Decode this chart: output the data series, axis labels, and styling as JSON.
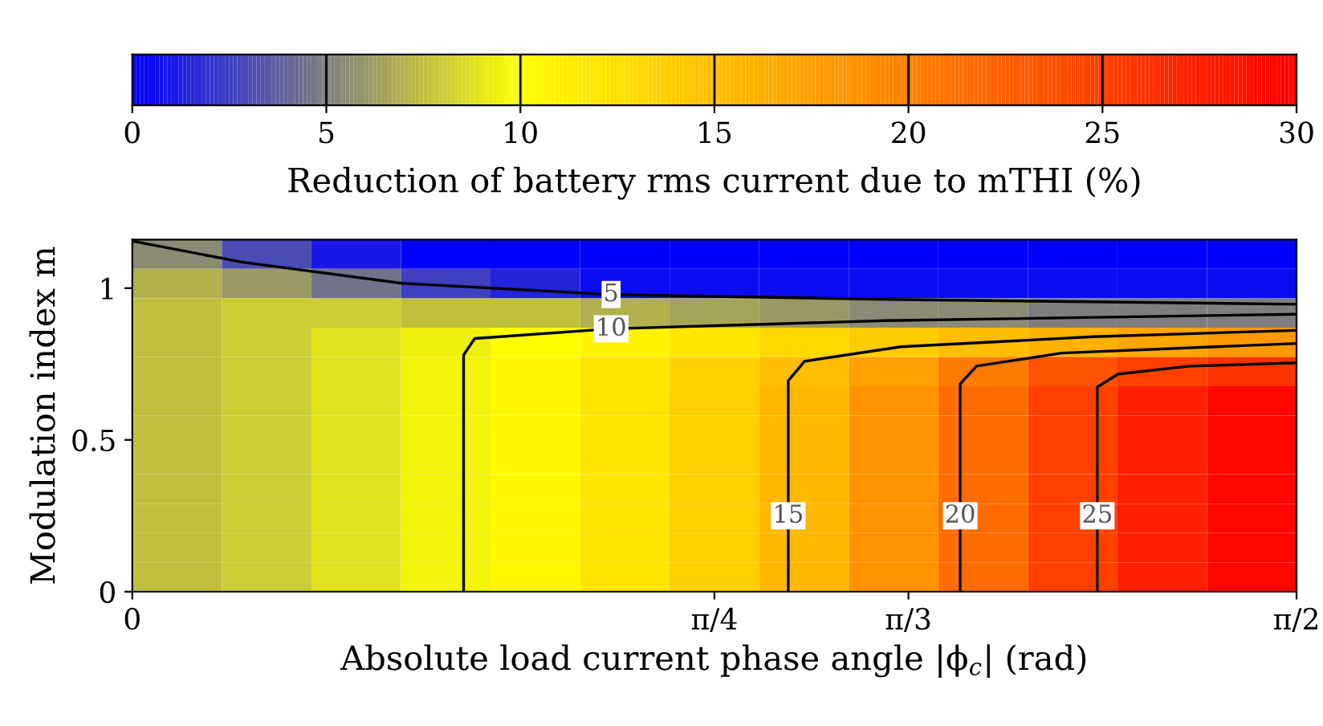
{
  "chart_data": {
    "type": "heatmap",
    "xlabel": "Absolute load current phase angle |ϕ$_{c}$| (rad)",
    "ylabel": "Modulation index m",
    "clabel": "Reduction of battery rms current due to mTHI (%)",
    "x": [
      0.0604,
      0.1812,
      0.3021,
      0.4229,
      0.5437,
      0.6646,
      0.7854,
      0.9062,
      1.0271,
      1.1479,
      1.2687,
      1.3896,
      1.5104
    ],
    "xlim": [
      0,
      1.5708
    ],
    "ylim": [
      0,
      1.16
    ],
    "xticks": [
      0,
      {
        "value": 0.7854,
        "label": "π/4"
      },
      {
        "value": 1.0472,
        "label": "π/3"
      },
      {
        "value": 1.5708,
        "label": "π/2"
      }
    ],
    "yticks": [
      0,
      0.5,
      1
    ],
    "clim": [
      0,
      30
    ],
    "cticks": [
      0,
      5,
      10,
      15,
      20,
      25,
      30
    ],
    "colors": [
      "#0000ff",
      "#808080",
      "#ffff00",
      "#ffbf00",
      "#ff8000",
      "#ff4000",
      "#ff0000"
    ],
    "cells": [
      [
        5.5,
        3,
        1,
        0,
        0,
        0,
        0,
        0,
        0,
        0,
        0,
        0,
        0
      ],
      [
        7,
        6,
        4.5,
        2.5,
        1.5,
        0.5,
        0.5,
        0.5,
        0.5,
        0.5,
        0.5,
        0.5,
        0.5
      ],
      [
        7.5,
        8,
        8,
        7.5,
        7.5,
        7,
        6.5,
        6,
        5.5,
        5.5,
        5,
        5,
        5
      ],
      [
        7.5,
        8,
        8.8,
        9.4,
        10.2,
        11,
        12,
        13,
        14,
        15,
        16,
        17,
        18
      ],
      [
        7.5,
        8,
        8.8,
        9.6,
        10.6,
        12,
        13.5,
        15,
        17.5,
        20.5,
        23.5,
        25,
        26
      ],
      [
        7.5,
        8,
        8.8,
        9.6,
        10.6,
        12,
        13.8,
        15.5,
        18.5,
        21.5,
        25,
        27.5,
        29.5
      ],
      [
        7.5,
        8,
        8.8,
        9.6,
        10.6,
        12,
        13.8,
        15.5,
        18.5,
        21.5,
        25,
        27.5,
        29.5
      ],
      [
        7.5,
        8,
        8.8,
        9.6,
        10.6,
        12,
        13.8,
        15.5,
        18.5,
        21.5,
        25,
        27.5,
        29.5
      ],
      [
        7.5,
        8,
        8.8,
        9.6,
        10.6,
        12,
        13.8,
        15.5,
        18.5,
        21.5,
        25,
        27.5,
        29.5
      ],
      [
        7.5,
        8,
        8.8,
        9.6,
        10.6,
        12,
        13.8,
        15.5,
        18.5,
        21.5,
        25,
        27.5,
        29.5
      ],
      [
        7.5,
        8,
        8.8,
        9.6,
        10.6,
        12,
        13.8,
        15.5,
        18.5,
        21.5,
        25,
        27.5,
        29.5
      ],
      [
        7.5,
        8,
        8.8,
        9.6,
        10.6,
        12,
        13.8,
        15.5,
        18.5,
        21.5,
        25,
        27.5,
        29.5
      ]
    ],
    "series": [
      {
        "type": "line",
        "color": "#000000",
        "x": [
          0,
          0.148,
          0.364,
          0.646,
          1.015,
          1.5708
        ],
        "values": [
          1.155,
          1.086,
          1.016,
          0.979,
          0.963,
          0.947
        ]
      },
      {
        "type": "line",
        "color": "#000000",
        "x": [
          0.447,
          0.447,
          0.462,
          0.646,
          1.015,
          1.5708
        ],
        "values": [
          0,
          0.78,
          0.834,
          0.866,
          0.893,
          0.914
        ]
      },
      {
        "type": "line",
        "color": "#000000",
        "x": [
          0.885,
          0.885,
          0.907,
          1.037,
          1.297,
          1.5708
        ],
        "values": [
          0,
          0.695,
          0.759,
          0.807,
          0.84,
          0.861
        ]
      },
      {
        "type": "line",
        "color": "#000000",
        "x": [
          1.117,
          1.117,
          1.139,
          1.254,
          1.5708
        ],
        "values": [
          0,
          0.684,
          0.743,
          0.786,
          0.818
        ]
      },
      {
        "type": "line",
        "color": "#000000",
        "x": [
          1.302,
          1.302,
          1.33,
          1.427,
          1.5708
        ],
        "values": [
          0,
          0.674,
          0.717,
          0.743,
          0.754
        ]
      }
    ],
    "annotations": [
      {
        "text": "5",
        "x": 0.646,
        "y": 0.979
      },
      {
        "text": "10",
        "x": 0.646,
        "y": 0.866
      },
      {
        "text": "15",
        "x": 0.885,
        "y": 0.25
      },
      {
        "text": "20",
        "x": 1.117,
        "y": 0.25
      },
      {
        "text": "25",
        "x": 1.302,
        "y": 0.25
      }
    ]
  }
}
